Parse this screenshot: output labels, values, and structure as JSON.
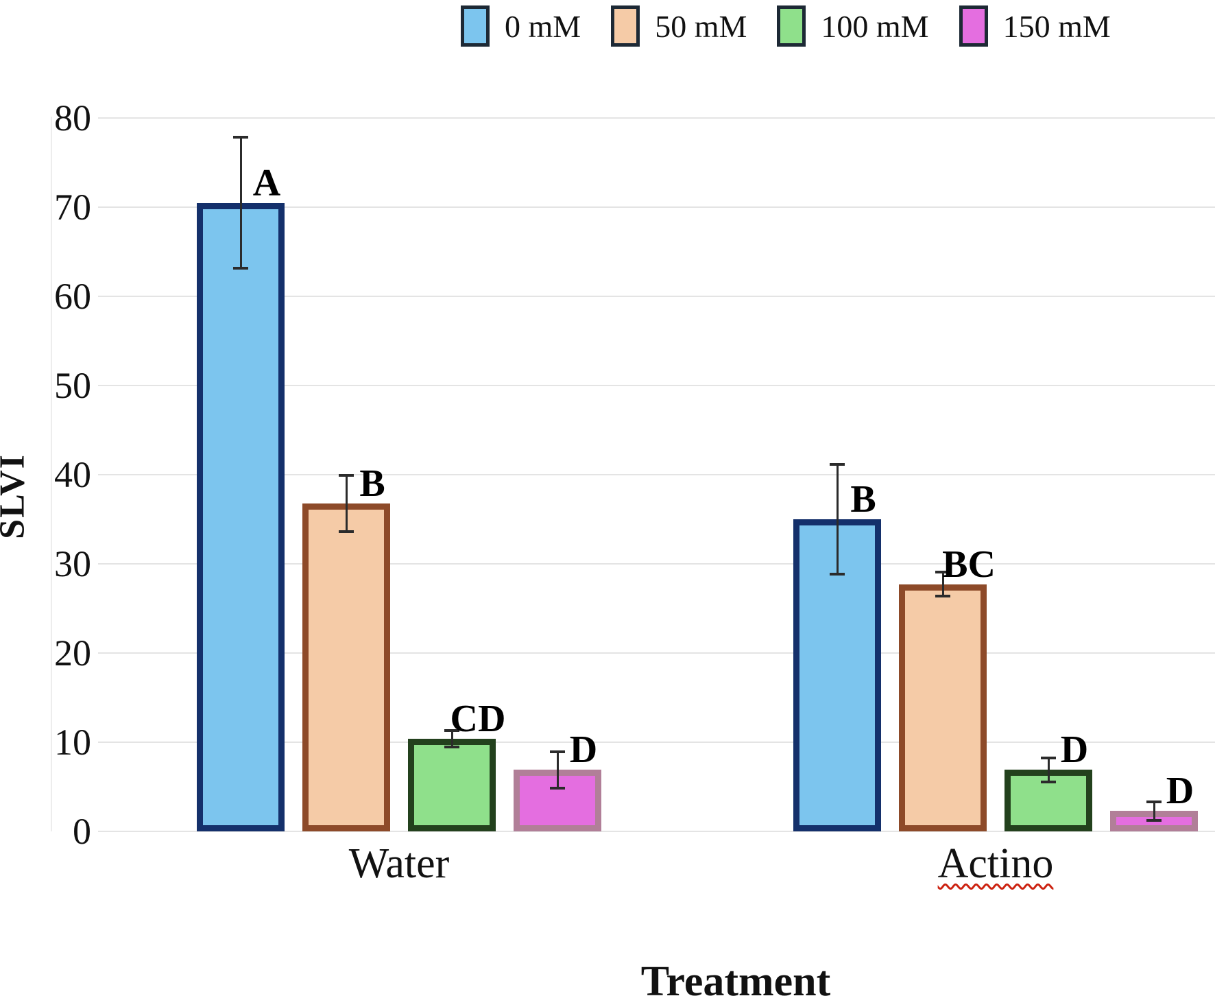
{
  "figure": {
    "background": "#ffffff"
  },
  "chart_data": {
    "type": "bar",
    "title": "",
    "xlabel": "Treatment",
    "ylabel": "SLVI",
    "ylim": [
      0,
      80
    ],
    "yticks": [
      0,
      10,
      20,
      30,
      40,
      50,
      60,
      70,
      80
    ],
    "grid": true,
    "legend_position": "top",
    "categories": [
      {
        "label": "Water",
        "spellcheck_underline": false
      },
      {
        "label": "Actino",
        "spellcheck_underline": true
      }
    ],
    "series": [
      {
        "name": "0 mM",
        "fill": "#7cc5ee",
        "stroke": "#14306b",
        "values": [
          70.5,
          35.0
        ],
        "errors": [
          7.5,
          6.3
        ],
        "sig_labels": [
          "A",
          "B"
        ]
      },
      {
        "name": "50 mM",
        "fill": "#f5cba7",
        "stroke": "#8d4a29",
        "values": [
          36.8,
          27.7
        ],
        "errors": [
          3.3,
          1.5
        ],
        "sig_labels": [
          "B",
          "BC"
        ]
      },
      {
        "name": "100 mM",
        "fill": "#8fe08b",
        "stroke": "#23411d",
        "values": [
          10.4,
          6.9
        ],
        "errors": [
          1.1,
          1.5
        ],
        "sig_labels": [
          "CD",
          "D"
        ]
      },
      {
        "name": "150 mM",
        "fill": "#e46ee0",
        "stroke": "#b17f98",
        "values": [
          6.9,
          2.3
        ],
        "errors": [
          2.2,
          1.2
        ],
        "sig_labels": [
          "D",
          "D"
        ]
      }
    ],
    "error_bar_color": "#2b2b2b",
    "sig_label_color": "#000000",
    "legend_swatch_border": "#1d2935",
    "spellcheck_color": "#cc2211",
    "gridline_color": "#e4e4e4"
  }
}
